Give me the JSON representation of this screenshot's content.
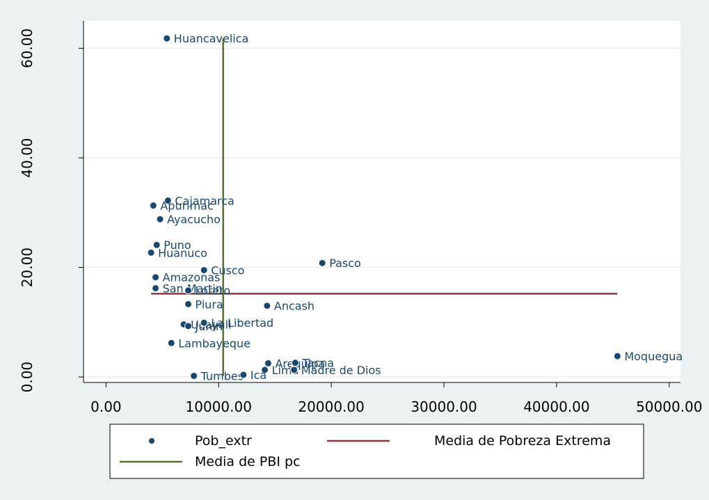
{
  "chart_data": {
    "type": "scatter",
    "title": "",
    "xlabel": "",
    "ylabel": "",
    "xlim": [
      -2000,
      51000
    ],
    "ylim": [
      -1,
      65
    ],
    "x_ticks": [
      0,
      10000,
      20000,
      30000,
      40000,
      50000
    ],
    "x_tick_labels": [
      "0.00",
      "10000.00",
      "20000.00",
      "30000.00",
      "40000.00",
      "50000.00"
    ],
    "y_ticks": [
      0,
      20,
      40,
      60
    ],
    "y_tick_labels": [
      "0.00",
      "20.00",
      "40.00",
      "60.00"
    ],
    "grid": "horizontal",
    "legend_position": "bottom",
    "colors": {
      "outer_background": "#eaf2f3",
      "plot_background": "#ffffff",
      "grid": "#eaf2f3",
      "points": "#1a476f",
      "labels": "#1a476f",
      "poverty_mean_line": "#90353b",
      "gdp_mean_line": "#55752f"
    },
    "series": [
      {
        "name": "Pob_extr",
        "points": [
          {
            "label": "Huancavelica",
            "x": 5400,
            "y": 61.8
          },
          {
            "label": "Cajamarca",
            "x": 5500,
            "y": 32.2
          },
          {
            "label": "Apurimac",
            "x": 4200,
            "y": 31.3
          },
          {
            "label": "Ayacucho",
            "x": 4800,
            "y": 28.8
          },
          {
            "label": "Puno",
            "x": 4500,
            "y": 24.1
          },
          {
            "label": "Huanuco",
            "x": 4000,
            "y": 22.7
          },
          {
            "label": "Pasco",
            "x": 19200,
            "y": 20.8
          },
          {
            "label": "Cusco",
            "x": 8700,
            "y": 19.5
          },
          {
            "label": "Amazonas",
            "x": 4400,
            "y": 18.2
          },
          {
            "label": "San Martin",
            "x": 4400,
            "y": 16.2
          },
          {
            "label": "Loreto",
            "x": 7300,
            "y": 15.8
          },
          {
            "label": "Piura",
            "x": 7300,
            "y": 13.3
          },
          {
            "label": "Ancash",
            "x": 14300,
            "y": 13.0
          },
          {
            "label": "Ucayali",
            "x": 6900,
            "y": 9.6
          },
          {
            "label": "Junin",
            "x": 7300,
            "y": 9.3
          },
          {
            "label": "La Libertad",
            "x": 8700,
            "y": 9.9
          },
          {
            "label": "Lambayeque",
            "x": 5800,
            "y": 6.2
          },
          {
            "label": "Moquegua",
            "x": 45400,
            "y": 3.8
          },
          {
            "label": "Arequipa",
            "x": 14400,
            "y": 2.5
          },
          {
            "label": "Tacna",
            "x": 16800,
            "y": 2.6
          },
          {
            "label": "Lima",
            "x": 14100,
            "y": 1.3
          },
          {
            "label": "Madre de Dios",
            "x": 16700,
            "y": 1.3
          },
          {
            "label": "Tumbes",
            "x": 7800,
            "y": 0.2
          },
          {
            "label": "Ica",
            "x": 12200,
            "y": 0.4
          }
        ]
      },
      {
        "name": "Media de Pobreza Extrema",
        "type": "line",
        "points": [
          {
            "x": 4000,
            "y": 15.2
          },
          {
            "x": 45400,
            "y": 15.2
          }
        ]
      },
      {
        "name": "Media de PBI pc",
        "type": "line",
        "points": [
          {
            "x": 10400,
            "y": 0.2
          },
          {
            "x": 10400,
            "y": 61.8
          }
        ]
      }
    ]
  }
}
